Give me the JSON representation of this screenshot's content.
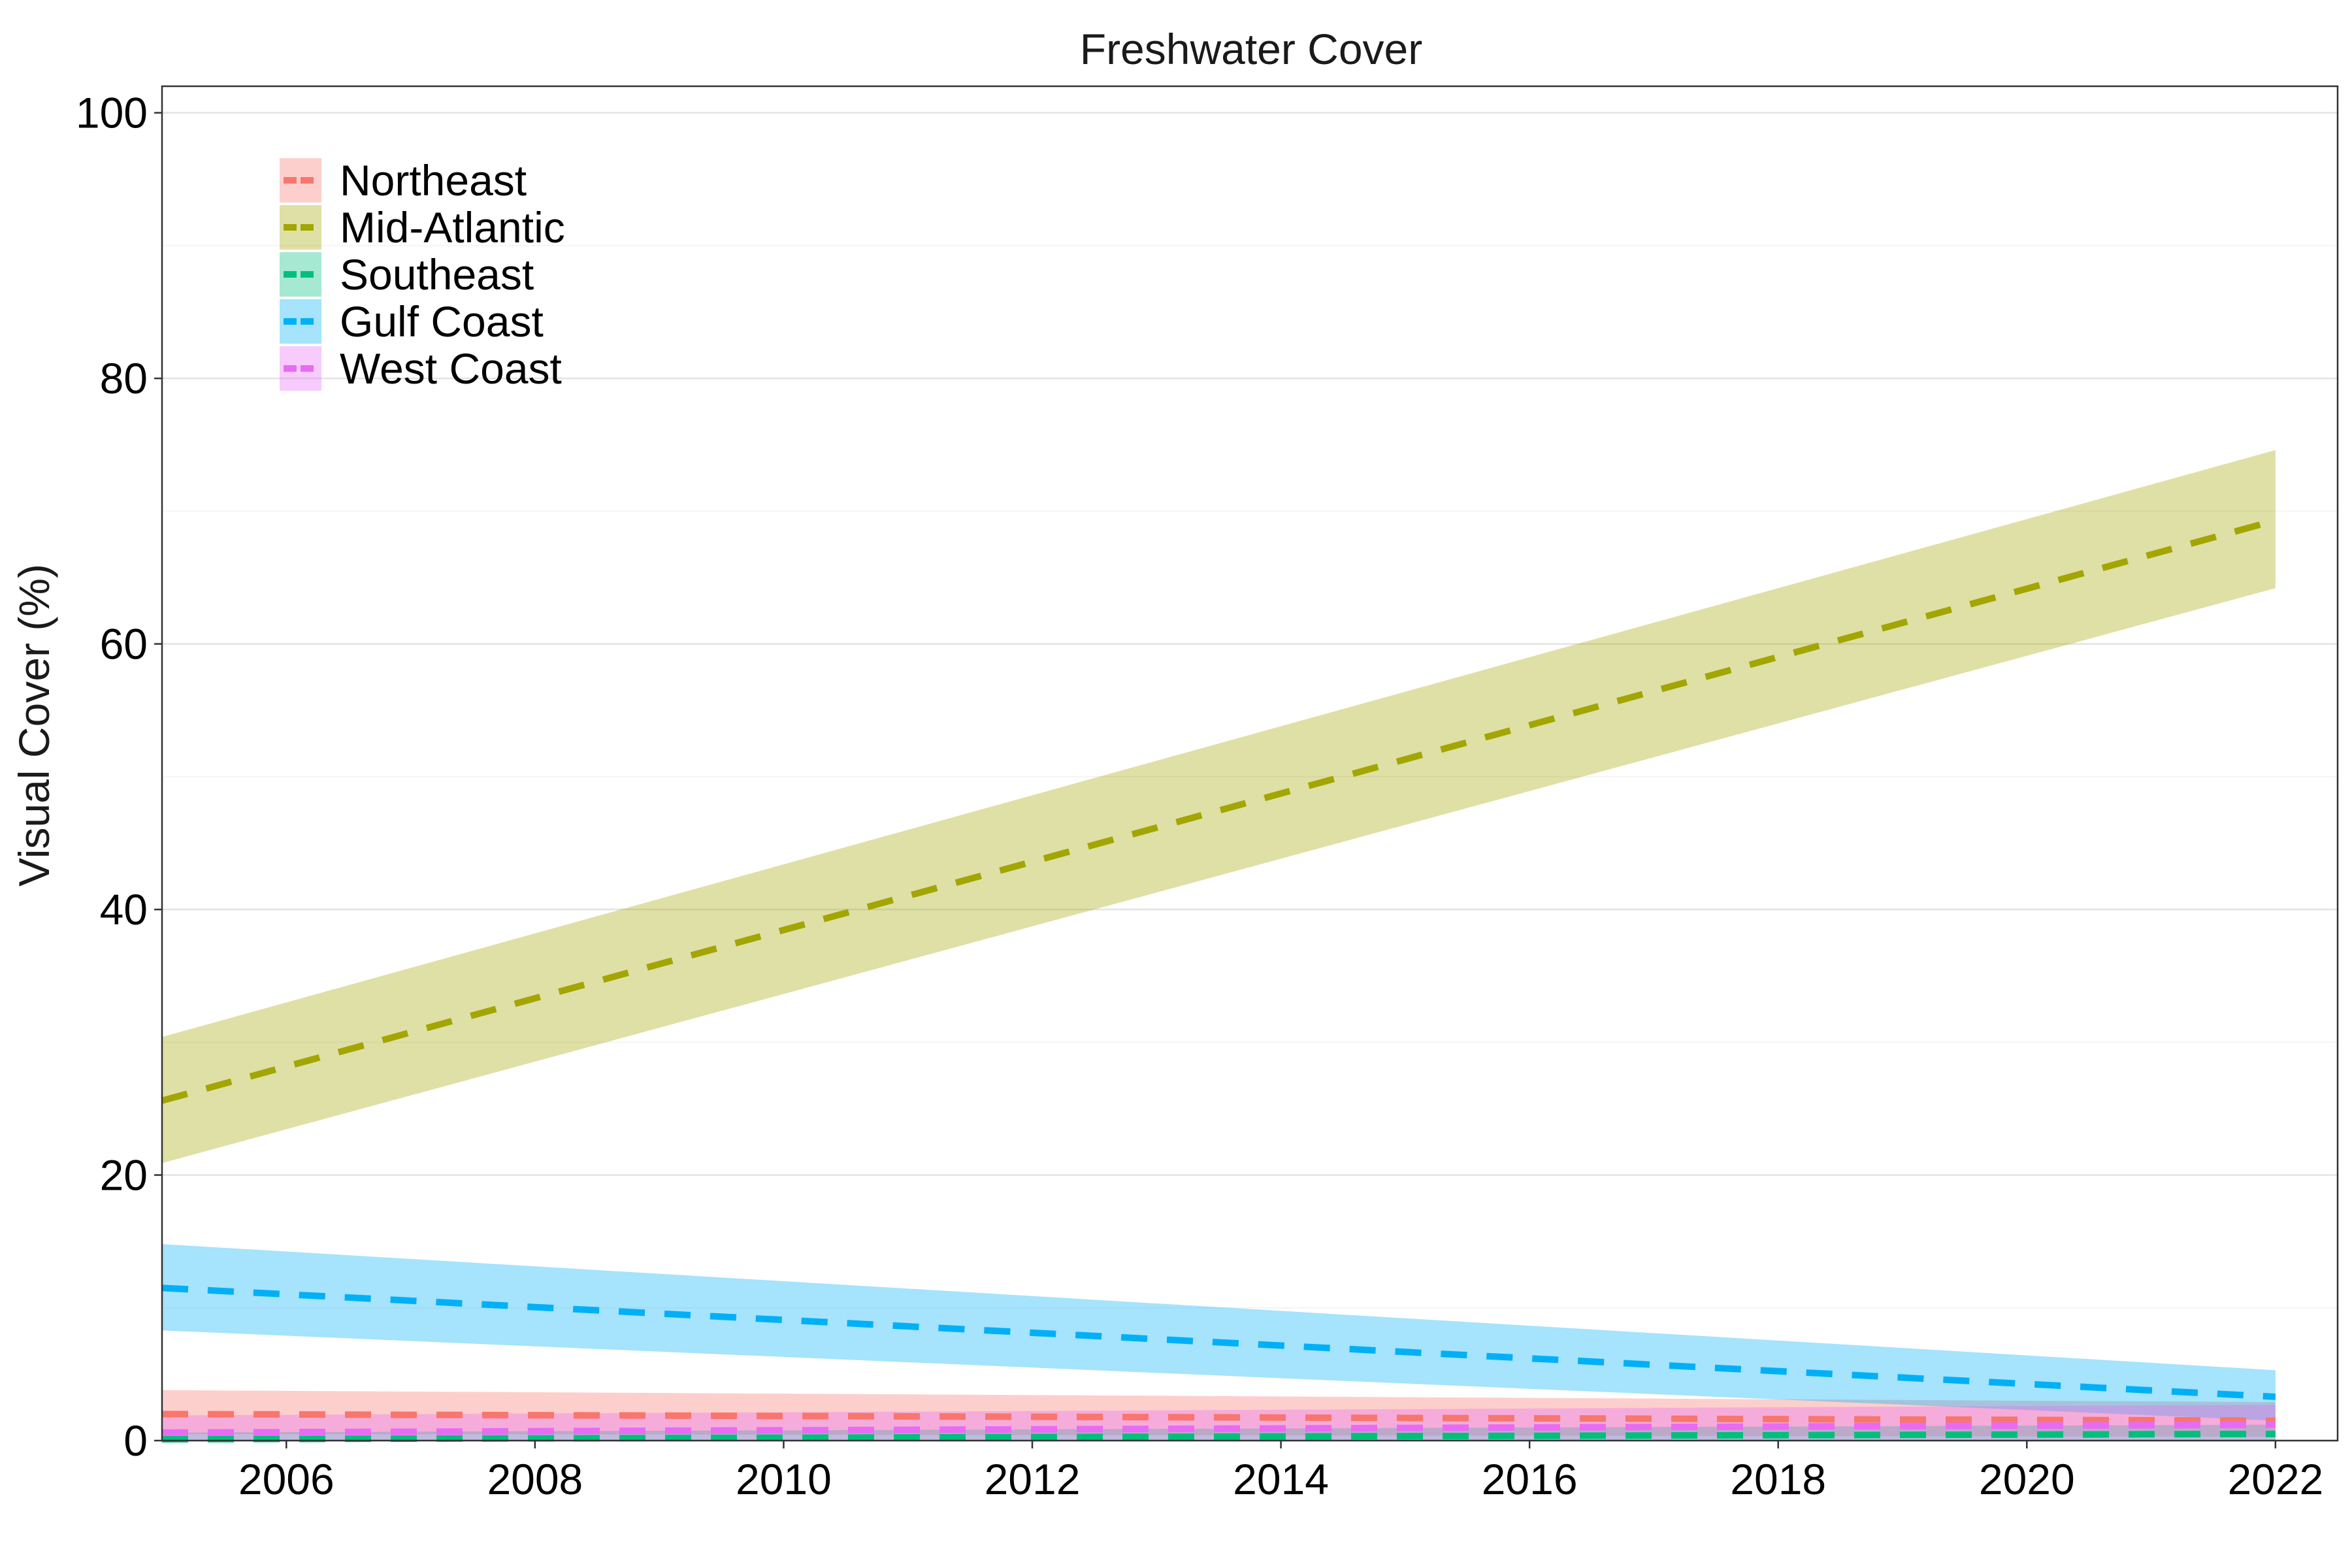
{
  "chart_data": {
    "type": "line",
    "title": "Freshwater Cover",
    "xlabel": "",
    "ylabel": "Visual Cover (%)",
    "xlim": [
      2005,
      2022.5
    ],
    "ylim": [
      0,
      102
    ],
    "x_ticks": [
      2006,
      2008,
      2010,
      2012,
      2014,
      2016,
      2018,
      2020,
      2022
    ],
    "y_ticks": [
      0,
      20,
      40,
      60,
      80,
      100
    ],
    "grid": true,
    "legend_position": "top-left",
    "line_style": "dashed",
    "ribbon": "confidence band",
    "x": [
      2005,
      2022
    ],
    "series": [
      {
        "name": "Northeast",
        "color": "#F8766D",
        "fill": "#F8766D",
        "fit": [
          2.0,
          1.5
        ],
        "lower": [
          0.5,
          0.3
        ],
        "upper": [
          3.8,
          2.9
        ]
      },
      {
        "name": "Mid-Atlantic",
        "color": "#A3A500",
        "fill": "#A3A500",
        "fit": [
          25.6,
          69.3
        ],
        "lower": [
          20.9,
          64.2
        ],
        "upper": [
          30.4,
          74.6
        ]
      },
      {
        "name": "Southeast",
        "color": "#00BF7D",
        "fill": "#00BF7D",
        "fit": [
          0.1,
          0.5
        ],
        "lower": [
          0.0,
          0.0
        ],
        "upper": [
          0.6,
          1.2
        ]
      },
      {
        "name": "Gulf Coast",
        "color": "#00B0F6",
        "fill": "#00B0F6",
        "fit": [
          11.5,
          3.3
        ],
        "lower": [
          8.3,
          1.5
        ],
        "upper": [
          14.8,
          5.3
        ]
      },
      {
        "name": "West Coast",
        "color": "#E76BF3",
        "fill": "#E76BF3",
        "fit": [
          0.6,
          1.2
        ],
        "lower": [
          0.0,
          0.0
        ],
        "upper": [
          1.9,
          2.7
        ]
      }
    ]
  }
}
